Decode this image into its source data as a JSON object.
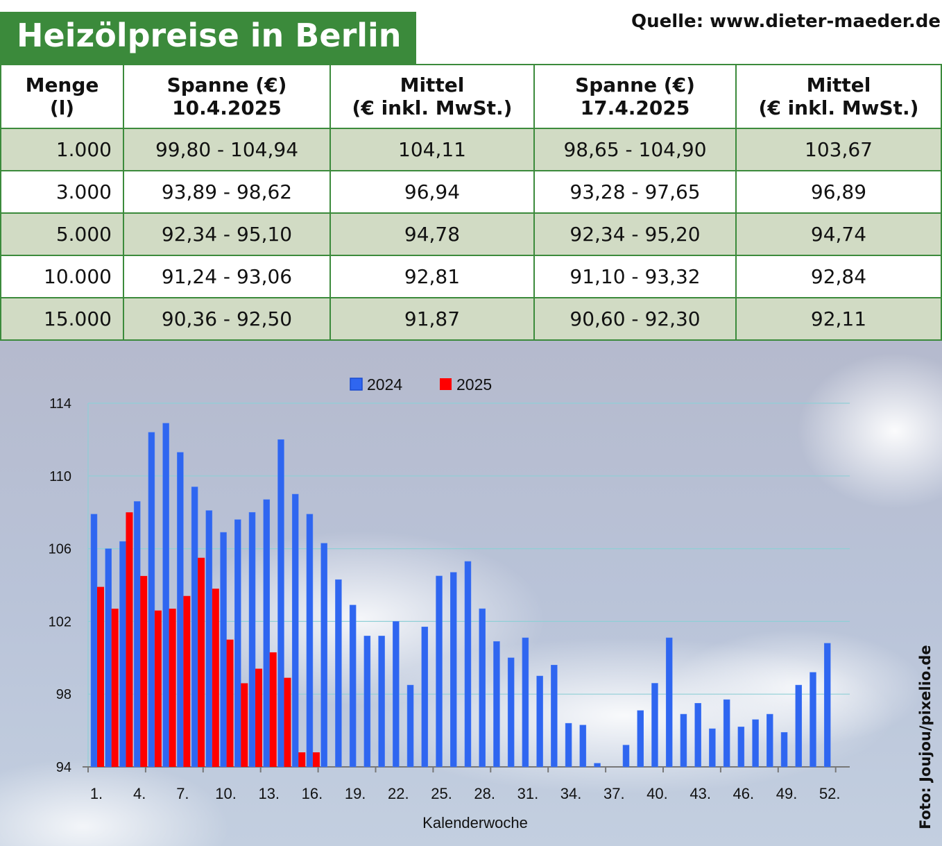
{
  "header": {
    "title": "Heizölpreise in Berlin",
    "source": "Quelle: www.dieter-maeder.de"
  },
  "table": {
    "columns": [
      [
        "Menge",
        "(l)"
      ],
      [
        "Spanne (€)",
        "10.4.2025"
      ],
      [
        "Mittel",
        "(€ inkl. MwSt.)"
      ],
      [
        "Spanne (€)",
        "17.4.2025"
      ],
      [
        "Mittel",
        "(€ inkl. MwSt.)"
      ]
    ],
    "rows": [
      [
        "1.000",
        "99,80 - 104,94",
        "104,11",
        "98,65 - 104,90",
        "103,67"
      ],
      [
        "3.000",
        "93,89 - 98,62",
        "96,94",
        "93,28 - 97,65",
        "96,89"
      ],
      [
        "5.000",
        "92,34 - 95,10",
        "94,78",
        "92,34 - 95,20",
        "94,74"
      ],
      [
        "10.000",
        "91,24 - 93,06",
        "92,81",
        "91,10 - 93,32",
        "92,84"
      ],
      [
        "15.000",
        "90,36 - 92,50",
        "91,87",
        "90,60 - 92,30",
        "92,11"
      ]
    ]
  },
  "photo_credit": "Foto: Joujou/pixelio.de",
  "chart_data": {
    "type": "bar",
    "title": "",
    "xlabel": "Kalenderwoche",
    "ylabel": "",
    "ylim": [
      94,
      114
    ],
    "yticks": [
      94,
      98,
      102,
      106,
      110,
      114
    ],
    "xtick_labels": [
      "1.",
      "4.",
      "7.",
      "10.",
      "13.",
      "16.",
      "19.",
      "22.",
      "25.",
      "28.",
      "31.",
      "34.",
      "37.",
      "40.",
      "43.",
      "46.",
      "49.",
      "52."
    ],
    "xtick_weeks": [
      1,
      4,
      7,
      10,
      13,
      16,
      19,
      22,
      25,
      28,
      31,
      34,
      37,
      40,
      43,
      46,
      49,
      52
    ],
    "grid": true,
    "legend_position": "top-center",
    "series": [
      {
        "name": "2024",
        "color": "#2f66f0",
        "values": [
          107.9,
          106.0,
          106.4,
          108.6,
          112.4,
          112.9,
          111.3,
          109.4,
          108.1,
          106.9,
          107.6,
          108.0,
          108.7,
          112.0,
          109.0,
          107.9,
          106.3,
          104.3,
          102.9,
          101.2,
          101.2,
          102.0,
          98.5,
          101.7,
          104.5,
          104.7,
          105.3,
          102.7,
          100.9,
          100.0,
          101.1,
          99.0,
          99.6,
          96.4,
          96.3,
          94.2,
          null,
          95.2,
          97.1,
          98.6,
          101.1,
          96.9,
          97.5,
          96.1,
          97.7,
          96.2,
          96.6,
          96.9,
          95.9,
          98.5,
          99.2,
          100.8
        ]
      },
      {
        "name": "2025",
        "color": "#ff0000",
        "values": [
          103.9,
          102.7,
          108.0,
          104.5,
          102.6,
          102.7,
          103.4,
          105.5,
          103.8,
          101.0,
          98.6,
          99.4,
          100.3,
          98.9,
          94.8,
          94.8
        ]
      }
    ]
  }
}
